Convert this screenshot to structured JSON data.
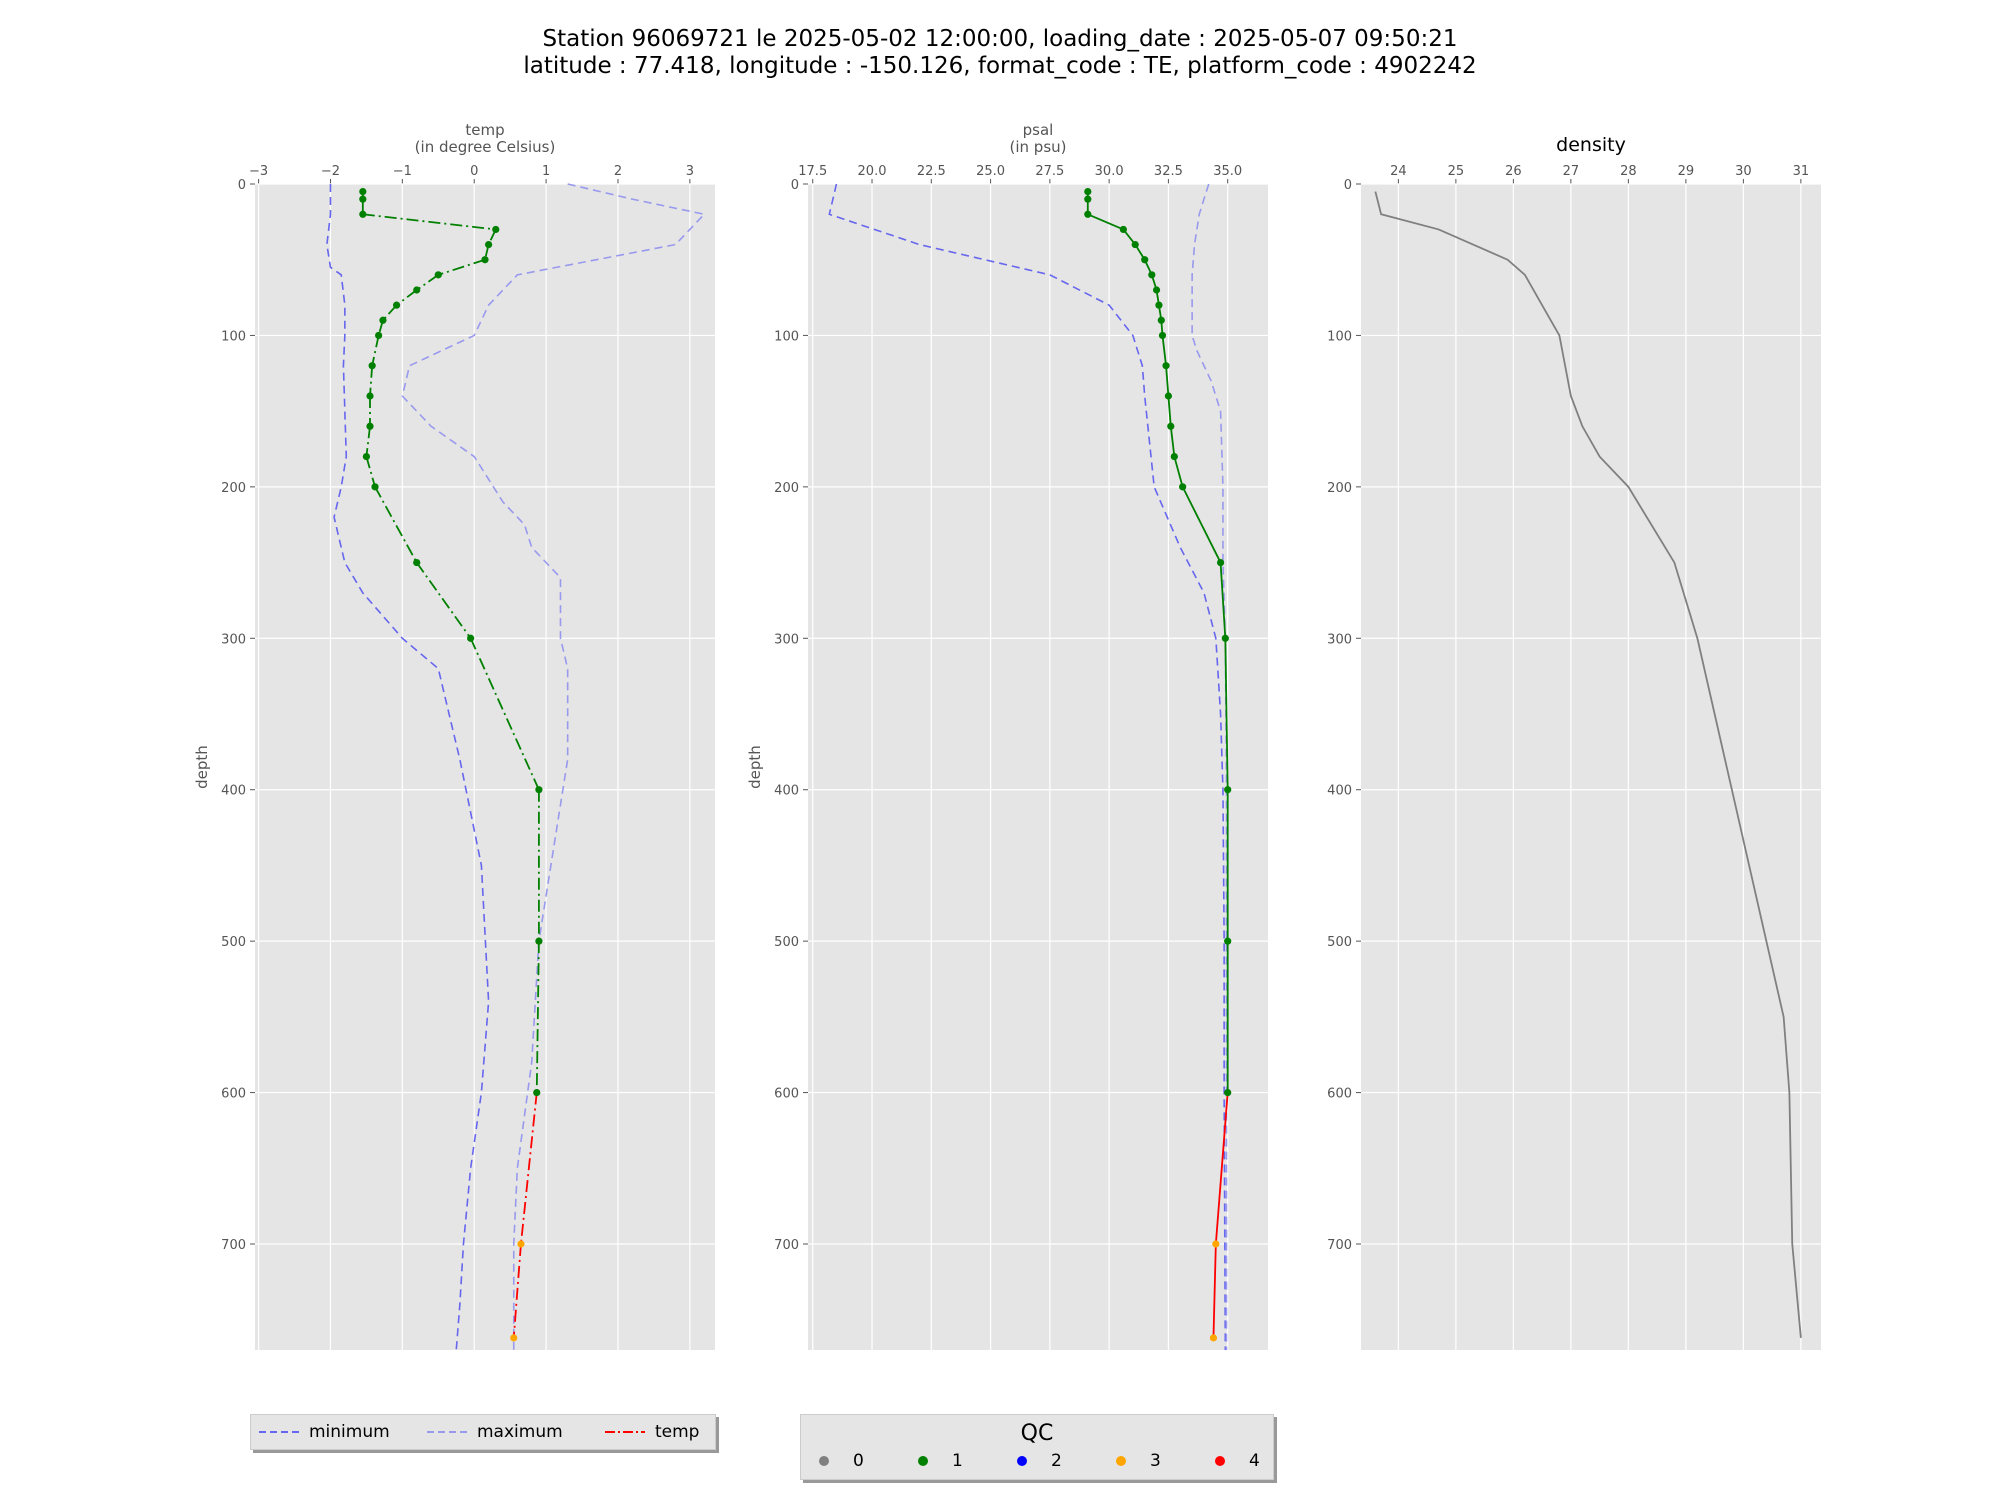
{
  "title_line1": "Station 96069721 le 2025-05-02 12:00:00, loading_date : 2025-05-07 09:50:21",
  "title_line2": "latitude : 77.418, longitude : -150.126, format_code : TE, platform_code : 4902242",
  "colors": {
    "panel_bg": "#e5e5e5",
    "grid": "#ffffff",
    "minimum": "#6666ee",
    "maximum": "#9999ee",
    "qc_0": "#808080",
    "qc_1": "#008000",
    "qc_2": "#0000ff",
    "qc_3": "#ffa500",
    "qc_4": "#ff0000",
    "density": "#808080"
  },
  "chart_data": [
    {
      "type": "line",
      "panel": "temp",
      "xlabel_line1": "temp",
      "xlabel_line2": "(in degree Celsius)",
      "ylabel": "depth",
      "xlim": [
        -3.05,
        3.35
      ],
      "ylim": [
        770,
        0
      ],
      "xticks": [
        -3,
        -2,
        -1,
        0,
        1,
        2,
        3
      ],
      "xtick_labels": [
        "−3",
        "−2",
        "−1",
        "0",
        "1",
        "2",
        "3"
      ],
      "yticks": [
        0,
        100,
        200,
        300,
        400,
        500,
        600,
        700
      ],
      "grid": true,
      "series": [
        {
          "name": "minimum",
          "style": "dashed",
          "x": [
            -2.0,
            -2.0,
            -2.05,
            -2.0,
            -1.85,
            -1.8,
            -1.8,
            -1.82,
            -1.78,
            -1.85,
            -1.95,
            -1.8,
            -1.55,
            -1.0,
            -0.5,
            -0.35,
            -0.2,
            0.1,
            0.2,
            0.1,
            -0.05,
            -0.15,
            -0.2,
            -0.25
          ],
          "y": [
            0,
            20,
            40,
            55,
            60,
            80,
            100,
            120,
            180,
            200,
            220,
            250,
            270,
            300,
            320,
            350,
            380,
            450,
            540,
            600,
            650,
            700,
            740,
            770
          ]
        },
        {
          "name": "maximum",
          "style": "dashed",
          "x": [
            1.3,
            2.2,
            3.2,
            2.8,
            0.6,
            0.2,
            0.0,
            -0.9,
            -1.0,
            -0.6,
            0.0,
            0.4,
            0.7,
            0.8,
            1.2,
            1.2,
            1.3,
            1.3,
            1.1,
            0.9,
            0.8,
            0.6,
            0.55,
            0.55
          ],
          "y": [
            0,
            10,
            20,
            40,
            60,
            80,
            100,
            120,
            140,
            160,
            180,
            210,
            225,
            240,
            260,
            300,
            320,
            380,
            440,
            500,
            580,
            650,
            700,
            770
          ]
        },
        {
          "name": "temp",
          "style": "dashdot",
          "x": [
            -1.55,
            -1.55,
            -1.55,
            0.3,
            0.2,
            0.15,
            -0.5,
            -0.8,
            -1.08,
            -1.27,
            -1.33,
            -1.42,
            -1.45,
            -1.45,
            -1.5,
            -1.38,
            -0.8,
            -0.05,
            0.9,
            0.9,
            0.87,
            0.65,
            0.55
          ],
          "y": [
            5,
            10,
            20,
            30,
            40,
            50,
            60,
            70,
            80,
            90,
            100,
            120,
            140,
            160,
            180,
            200,
            250,
            300,
            400,
            500,
            600,
            700,
            762
          ],
          "qc": [
            1,
            1,
            1,
            1,
            1,
            1,
            1,
            1,
            1,
            1,
            1,
            1,
            1,
            1,
            1,
            1,
            1,
            1,
            1,
            1,
            1,
            3,
            3
          ]
        }
      ]
    },
    {
      "type": "line",
      "panel": "psal",
      "xlabel_line1": "psal",
      "xlabel_line2": "(in psu)",
      "ylabel": "depth",
      "xlim": [
        17.3,
        36.7
      ],
      "ylim": [
        770,
        0
      ],
      "xticks": [
        17.5,
        20.0,
        22.5,
        25.0,
        27.5,
        30.0,
        32.5,
        35.0
      ],
      "xtick_labels": [
        "17.5",
        "20.0",
        "22.5",
        "25.0",
        "27.5",
        "30.0",
        "32.5",
        "35.0"
      ],
      "yticks": [
        0,
        100,
        200,
        300,
        400,
        500,
        600,
        700
      ],
      "grid": true,
      "series": [
        {
          "name": "minimum",
          "style": "dashed",
          "x": [
            18.5,
            18.2,
            22.0,
            27.5,
            30.0,
            31.0,
            31.4,
            31.5,
            31.7,
            31.9,
            33.0,
            34.0,
            34.5,
            34.7,
            34.8,
            34.85,
            34.85,
            34.9
          ],
          "y": [
            0,
            20,
            40,
            60,
            80,
            100,
            120,
            140,
            170,
            200,
            240,
            270,
            300,
            350,
            400,
            500,
            600,
            770
          ]
        },
        {
          "name": "maximum",
          "style": "dashed",
          "x": [
            34.2,
            33.8,
            33.6,
            33.5,
            33.5,
            33.5,
            33.7,
            34.3,
            34.7,
            34.8,
            34.8,
            34.9,
            34.95,
            34.95,
            34.95,
            34.95
          ],
          "y": [
            0,
            20,
            40,
            60,
            80,
            100,
            110,
            130,
            150,
            200,
            250,
            300,
            400,
            500,
            600,
            770
          ]
        },
        {
          "name": "psal",
          "style": "solid",
          "x": [
            29.1,
            29.1,
            29.1,
            30.6,
            31.1,
            31.5,
            31.8,
            32.0,
            32.1,
            32.2,
            32.25,
            32.4,
            32.5,
            32.6,
            32.75,
            33.1,
            34.7,
            34.9,
            35.0,
            35.0,
            35.0,
            34.5,
            34.4
          ],
          "y": [
            5,
            10,
            20,
            30,
            40,
            50,
            60,
            70,
            80,
            90,
            100,
            120,
            140,
            160,
            180,
            200,
            250,
            300,
            400,
            500,
            600,
            700,
            762
          ],
          "qc": [
            1,
            1,
            1,
            1,
            1,
            1,
            1,
            1,
            1,
            1,
            1,
            1,
            1,
            1,
            1,
            1,
            1,
            1,
            1,
            1,
            1,
            3,
            3
          ]
        }
      ]
    },
    {
      "type": "line",
      "panel": "density",
      "title": "density",
      "xlim": [
        23.35,
        31.35
      ],
      "ylim": [
        770,
        0
      ],
      "xticks": [
        24,
        25,
        26,
        27,
        28,
        29,
        30,
        31
      ],
      "xtick_labels": [
        "24",
        "25",
        "26",
        "27",
        "28",
        "29",
        "30",
        "31"
      ],
      "yticks": [
        0,
        100,
        200,
        300,
        400,
        500,
        600,
        700
      ],
      "grid": true,
      "series": [
        {
          "name": "density",
          "style": "solid",
          "x": [
            23.6,
            23.7,
            24.7,
            25.3,
            25.9,
            26.2,
            26.5,
            26.8,
            27.0,
            27.2,
            27.5,
            28.0,
            28.8,
            29.2,
            29.5,
            29.8,
            30.1,
            30.4,
            30.7,
            30.8,
            30.85,
            31.0
          ],
          "y": [
            5,
            20,
            30,
            40,
            50,
            60,
            80,
            100,
            140,
            160,
            180,
            200,
            250,
            300,
            350,
            400,
            450,
            500,
            550,
            600,
            700,
            762
          ]
        }
      ]
    }
  ],
  "legend_temp": {
    "items": [
      {
        "label": "minimum",
        "style": "dashed",
        "color": "#6666ee"
      },
      {
        "label": "maximum",
        "style": "dashed",
        "color": "#9999ee"
      },
      {
        "label": "temp",
        "style": "dashdot",
        "color": "#ff0000"
      }
    ]
  },
  "legend_qc": {
    "title": "QC",
    "items": [
      {
        "label": "0",
        "color": "#808080"
      },
      {
        "label": "1",
        "color": "#008000"
      },
      {
        "label": "2",
        "color": "#0000ff"
      },
      {
        "label": "3",
        "color": "#ffa500"
      },
      {
        "label": "4",
        "color": "#ff0000"
      }
    ]
  }
}
